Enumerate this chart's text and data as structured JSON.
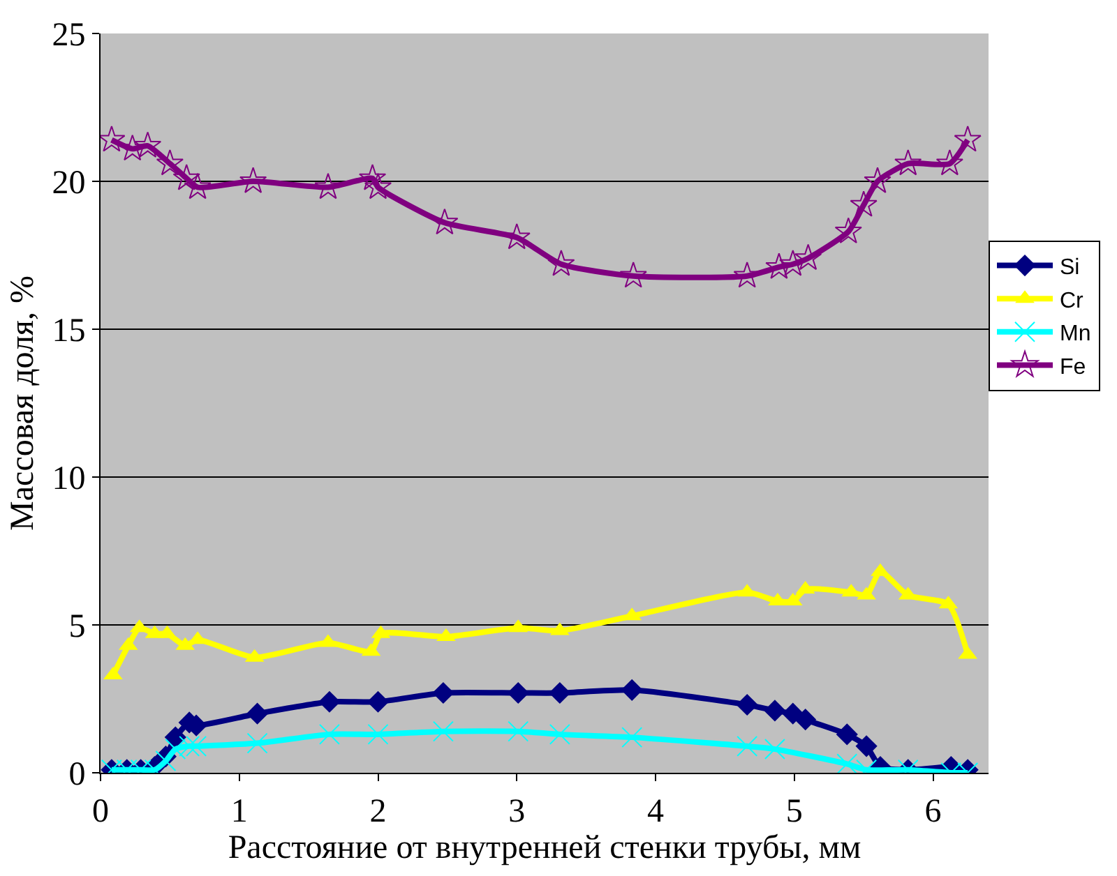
{
  "chart_data": {
    "type": "line",
    "xlabel": "Расстояние от внутренней стенки трубы, мм",
    "ylabel": "Массовая доля, %",
    "xlim": [
      0,
      6.4
    ],
    "xticks": [
      0,
      1,
      2,
      3,
      4,
      5,
      6
    ],
    "ylim": [
      0,
      25
    ],
    "yticks": [
      0,
      5,
      10,
      15,
      20,
      25
    ],
    "grid": "y",
    "legend": "right",
    "line_style": "solid",
    "series": [
      {
        "name": "Si",
        "color": "#000080",
        "marker": "diamond",
        "x": [
          0.08,
          0.19,
          0.29,
          0.39,
          0.47,
          0.54,
          0.64,
          0.69,
          1.13,
          1.65,
          2.0,
          2.47,
          3.01,
          3.31,
          3.83,
          4.66,
          4.86,
          4.99,
          5.08,
          5.38,
          5.52,
          5.62,
          5.82,
          6.13,
          6.25
        ],
        "values": [
          0.1,
          0.1,
          0.1,
          0.2,
          0.55,
          1.2,
          1.7,
          1.6,
          2.0,
          2.4,
          2.4,
          2.7,
          2.7,
          2.7,
          2.8,
          2.3,
          2.1,
          2.0,
          1.8,
          1.3,
          0.9,
          0.2,
          0.1,
          0.2,
          0.1
        ]
      },
      {
        "name": "Cr",
        "color": "#ffff00",
        "marker": "triangle",
        "x": [
          0.09,
          0.2,
          0.28,
          0.39,
          0.48,
          0.61,
          0.7,
          1.11,
          1.64,
          1.95,
          2.02,
          2.49,
          3.01,
          3.31,
          3.83,
          4.66,
          4.88,
          4.99,
          5.08,
          5.41,
          5.52,
          5.62,
          5.82,
          6.11,
          6.25
        ],
        "values": [
          3.3,
          4.3,
          4.9,
          4.7,
          4.7,
          4.3,
          4.5,
          3.9,
          4.4,
          4.1,
          4.7,
          4.6,
          4.9,
          4.8,
          5.3,
          6.1,
          5.8,
          5.8,
          6.2,
          6.1,
          6.0,
          6.8,
          6.0,
          5.7,
          4.0
        ]
      },
      {
        "name": "Mn",
        "color": "#00ffff",
        "marker": "cross",
        "x": [
          0.08,
          0.19,
          0.29,
          0.39,
          0.47,
          0.54,
          0.64,
          0.69,
          1.13,
          1.65,
          2.0,
          2.47,
          3.01,
          3.31,
          3.83,
          4.66,
          4.86,
          5.38,
          5.52,
          5.82,
          6.13,
          6.25
        ],
        "values": [
          0.1,
          0.1,
          0.1,
          0.1,
          0.4,
          0.8,
          0.9,
          0.9,
          1.0,
          1.3,
          1.3,
          1.4,
          1.4,
          1.3,
          1.2,
          0.9,
          0.8,
          0.3,
          0.1,
          0.1,
          0.0,
          0.0
        ]
      },
      {
        "name": "Fe",
        "color": "#800080",
        "marker": "star",
        "x": [
          0.08,
          0.23,
          0.34,
          0.5,
          0.62,
          0.7,
          1.1,
          1.64,
          1.96,
          2.0,
          2.48,
          3.0,
          3.32,
          3.84,
          4.66,
          4.89,
          4.99,
          5.1,
          5.39,
          5.5,
          5.6,
          5.82,
          6.12,
          6.25
        ],
        "values": [
          21.4,
          21.1,
          21.2,
          20.6,
          20.1,
          19.8,
          20.0,
          19.8,
          20.1,
          19.8,
          18.6,
          18.1,
          17.2,
          16.8,
          16.8,
          17.1,
          17.2,
          17.4,
          18.3,
          19.2,
          20.0,
          20.6,
          20.6,
          21.4
        ]
      }
    ]
  }
}
